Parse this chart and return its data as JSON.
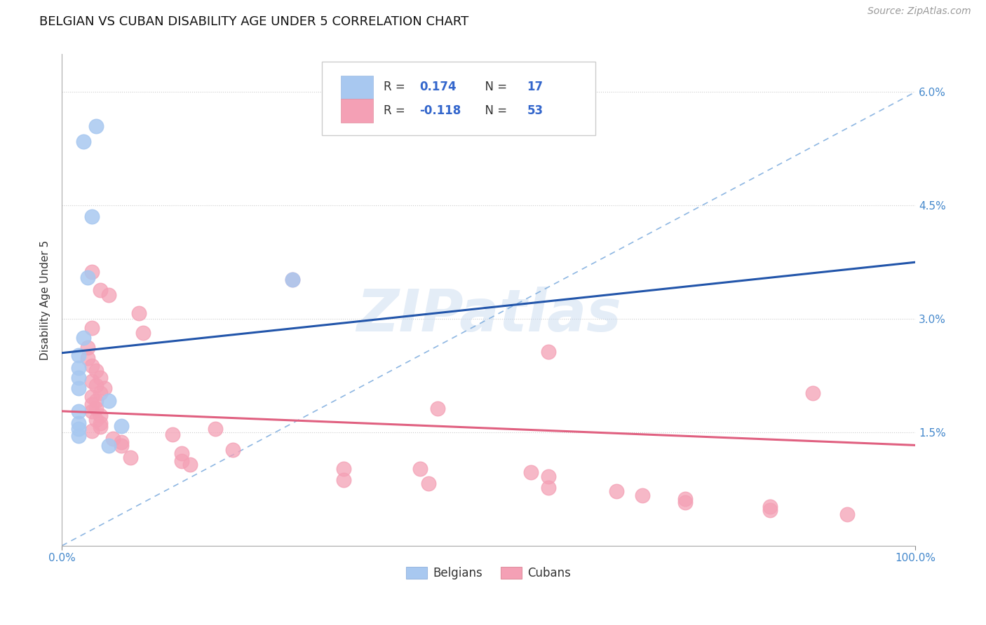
{
  "title": "BELGIAN VS CUBAN DISABILITY AGE UNDER 5 CORRELATION CHART",
  "source": "Source: ZipAtlas.com",
  "ylabel": "Disability Age Under 5",
  "xlim": [
    0,
    100
  ],
  "ylim": [
    0,
    6.5
  ],
  "ytick_vals": [
    0,
    1.5,
    3.0,
    4.5,
    6.0
  ],
  "ytick_labels": [
    "",
    "1.5%",
    "3.0%",
    "4.5%",
    "6.0%"
  ],
  "xtick_vals": [
    0,
    100
  ],
  "xtick_labels": [
    "0.0%",
    "100.0%"
  ],
  "belgian_R": 0.174,
  "belgian_N": 17,
  "cuban_R": -0.118,
  "cuban_N": 53,
  "belgian_color": "#a8c8f0",
  "cuban_color": "#f4a0b5",
  "belgian_line_color": "#2255aa",
  "cuban_line_color": "#e06080",
  "dashed_line_color": "#7aaadd",
  "belgian_line_intercept": 2.55,
  "belgian_line_slope": 0.012,
  "cuban_line_intercept": 1.78,
  "cuban_line_slope": -0.0045,
  "dash_intercept": 0.0,
  "dash_slope": 0.06,
  "belgian_points": [
    [
      2.5,
      5.35
    ],
    [
      4.0,
      5.55
    ],
    [
      3.5,
      4.35
    ],
    [
      3.0,
      3.55
    ],
    [
      27,
      3.52
    ],
    [
      2.5,
      2.75
    ],
    [
      2.0,
      2.52
    ],
    [
      2.0,
      2.35
    ],
    [
      2.0,
      2.22
    ],
    [
      2.0,
      2.08
    ],
    [
      5.5,
      1.92
    ],
    [
      2.0,
      1.78
    ],
    [
      2.0,
      1.62
    ],
    [
      7.0,
      1.58
    ],
    [
      2.0,
      1.45
    ],
    [
      5.5,
      1.32
    ],
    [
      2.0,
      1.55
    ]
  ],
  "cuban_points": [
    [
      3.5,
      3.62
    ],
    [
      4.5,
      3.38
    ],
    [
      5.5,
      3.32
    ],
    [
      9.0,
      3.08
    ],
    [
      3.5,
      2.88
    ],
    [
      9.5,
      2.82
    ],
    [
      27,
      3.52
    ],
    [
      3.0,
      2.62
    ],
    [
      3.0,
      2.48
    ],
    [
      3.5,
      2.38
    ],
    [
      4.0,
      2.32
    ],
    [
      4.5,
      2.22
    ],
    [
      3.5,
      2.18
    ],
    [
      4.0,
      2.12
    ],
    [
      5.0,
      2.08
    ],
    [
      4.5,
      2.02
    ],
    [
      3.5,
      1.97
    ],
    [
      4.0,
      1.92
    ],
    [
      3.5,
      1.87
    ],
    [
      4.0,
      1.82
    ],
    [
      3.5,
      1.78
    ],
    [
      4.5,
      1.72
    ],
    [
      4.0,
      1.67
    ],
    [
      4.5,
      1.62
    ],
    [
      4.5,
      1.57
    ],
    [
      18,
      1.55
    ],
    [
      3.5,
      1.52
    ],
    [
      13,
      1.47
    ],
    [
      6.0,
      1.42
    ],
    [
      7.0,
      1.37
    ],
    [
      7.0,
      1.32
    ],
    [
      20,
      1.27
    ],
    [
      14,
      1.22
    ],
    [
      8.0,
      1.17
    ],
    [
      14,
      1.12
    ],
    [
      15,
      1.07
    ],
    [
      33,
      1.02
    ],
    [
      42,
      1.02
    ],
    [
      55,
      0.97
    ],
    [
      57,
      0.92
    ],
    [
      33,
      0.87
    ],
    [
      43,
      0.82
    ],
    [
      57,
      0.77
    ],
    [
      65,
      0.72
    ],
    [
      68,
      0.67
    ],
    [
      73,
      0.62
    ],
    [
      73,
      0.57
    ],
    [
      83,
      0.52
    ],
    [
      83,
      0.47
    ],
    [
      92,
      0.42
    ],
    [
      88,
      2.02
    ],
    [
      57,
      2.57
    ],
    [
      44,
      1.82
    ]
  ],
  "background_color": "#ffffff",
  "grid_color": "#cccccc",
  "watermark_text": "ZIPatlas",
  "title_fontsize": 13,
  "axis_label_fontsize": 11,
  "tick_fontsize": 11,
  "source_fontsize": 10
}
